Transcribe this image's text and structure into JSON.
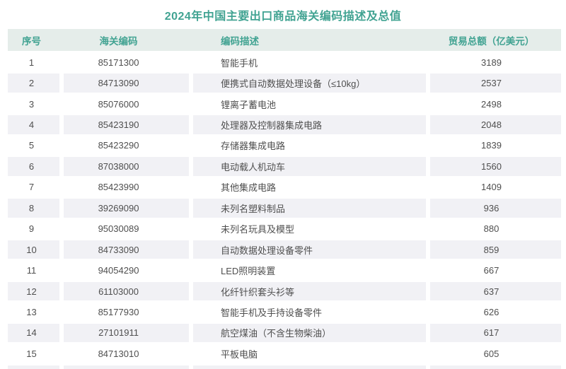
{
  "title": "2024年中国主要出口商品海关编码描述及总值",
  "colors": {
    "accent_teal": "#41a392",
    "header_background": "#e5edea",
    "stripe_background": "#f1f1f5",
    "body_text": "#4f4f4f",
    "page_background": "#ffffff"
  },
  "chart_data": {
    "type": "table",
    "title": "2024年中国主要出口商品海关编码描述及总值",
    "columns": [
      "序号",
      "海关编码",
      "编码描述",
      "贸易总额（亿美元）"
    ],
    "rows": [
      [
        1,
        "85171300",
        "智能手机",
        3189
      ],
      [
        2,
        "84713090",
        "便携式自动数据处理设备（≤10kg）",
        2537
      ],
      [
        3,
        "85076000",
        "锂离子蓄电池",
        2498
      ],
      [
        4,
        "85423190",
        "处理器及控制器集成电路",
        2048
      ],
      [
        5,
        "85423290",
        "存储器集成电路",
        1839
      ],
      [
        6,
        "87038000",
        "电动载人机动车",
        1560
      ],
      [
        7,
        "85423990",
        "其他集成电路",
        1409
      ],
      [
        8,
        "39269090",
        "未列名塑料制品",
        936
      ],
      [
        9,
        "95030089",
        "未列名玩具及模型",
        880
      ],
      [
        10,
        "84733090",
        "自动数据处理设备零件",
        859
      ],
      [
        11,
        "94054290",
        "LED照明装置",
        667
      ],
      [
        12,
        "61103000",
        "化纤针织套头衫等",
        637
      ],
      [
        13,
        "85177930",
        "智能手机及手持设备零件",
        626
      ],
      [
        14,
        "27101911",
        "航空煤油（不含生物柴油）",
        617
      ],
      [
        15,
        "84713010",
        "平板电脑",
        605
      ]
    ]
  }
}
